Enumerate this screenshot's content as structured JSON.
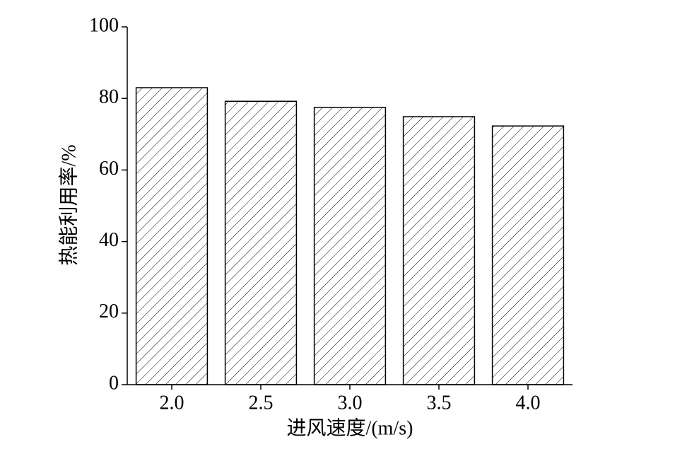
{
  "chart_data": {
    "type": "bar",
    "x_label": "进风速度/(m/s)",
    "y_label": "热能利用率/%",
    "categories": [
      "2.0",
      "2.5",
      "3.0",
      "3.5",
      "4.0"
    ],
    "values": [
      83.0,
      79.2,
      77.5,
      74.9,
      72.3
    ],
    "color": "#000000",
    "ylim": [
      0,
      100
    ],
    "yticks": [
      0,
      20,
      40,
      60,
      80,
      100
    ],
    "grid": false
  }
}
